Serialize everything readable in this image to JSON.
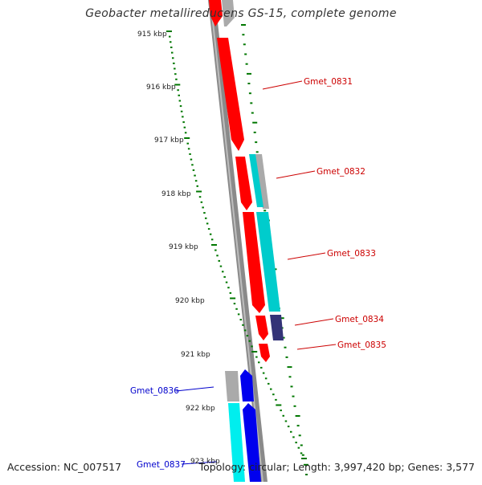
{
  "title": "Geobacter metallireducens GS-15, complete genome",
  "footer": {
    "accession": "Accession: NC_007517",
    "summary": "Topology: circular; Length: 3,997,420 bp; Genes: 3,577"
  },
  "ticks": [
    "915 kbp",
    "916 kbp",
    "917 kbp",
    "918 kbp",
    "919 kbp",
    "920 kbp",
    "921 kbp",
    "922 kbp",
    "923 kbp"
  ],
  "genes_forward": [
    "Gmet_0831",
    "Gmet_0832",
    "Gmet_0833",
    "Gmet_0834",
    "Gmet_0835"
  ],
  "genes_reverse": [
    "Gmet_0836",
    "Gmet_0837"
  ],
  "colors": {
    "forward_label": "#cc0000",
    "reverse_label": "#0000cc",
    "cds": "#ff0000",
    "rna": "#00cccc",
    "grey": "#aaaaaa",
    "navy": "#333377",
    "blue": "#0000ee",
    "scale": "#007700",
    "backbone": "#888888"
  }
}
